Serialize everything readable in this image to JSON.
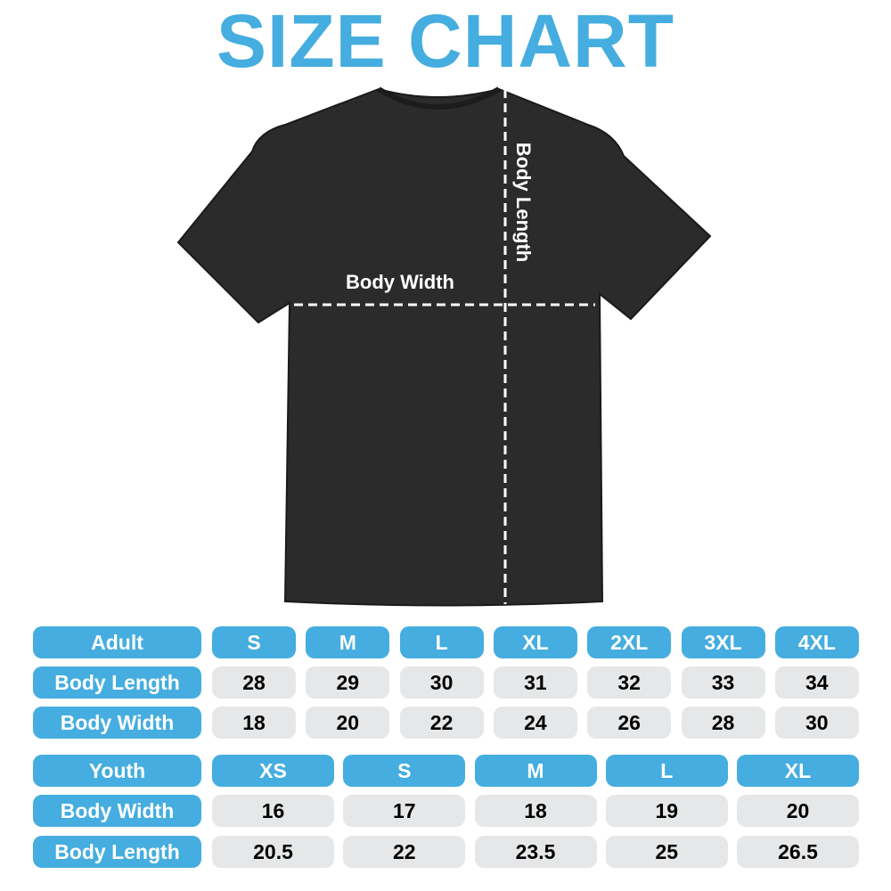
{
  "title": "SIZE CHART",
  "labels": {
    "body_width": "Body Width",
    "body_length": "Body Length"
  },
  "colors": {
    "accent": "#45addf",
    "cell": "#e6e7e8",
    "shirt": "#2a2a2a"
  },
  "adult": {
    "header": "Adult",
    "sizes": [
      "S",
      "M",
      "L",
      "XL",
      "2XL",
      "3XL",
      "4XL"
    ],
    "rows": [
      {
        "label": "Body Length",
        "values": [
          "28",
          "29",
          "30",
          "31",
          "32",
          "33",
          "34"
        ]
      },
      {
        "label": "Body Width",
        "values": [
          "18",
          "20",
          "22",
          "24",
          "26",
          "28",
          "30"
        ]
      }
    ]
  },
  "youth": {
    "header": "Youth",
    "sizes": [
      "XS",
      "S",
      "M",
      "L",
      "XL"
    ],
    "rows": [
      {
        "label": "Body Width",
        "values": [
          "16",
          "17",
          "18",
          "19",
          "20"
        ]
      },
      {
        "label": "Body Length",
        "values": [
          "20.5",
          "22",
          "23.5",
          "25",
          "26.5"
        ]
      }
    ]
  }
}
